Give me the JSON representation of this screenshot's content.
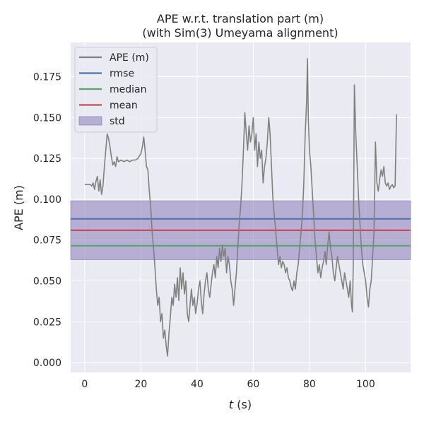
{
  "chart_data": {
    "type": "line",
    "title": "APE w.r.t. translation part (m)",
    "subtitle": "(with Sim(3) Umeyama alignment)",
    "xlabel_italic": "t",
    "xlabel_rest": " (s)",
    "ylabel": "APE (m)",
    "xlim": [
      -5,
      116
    ],
    "ylim": [
      -0.006,
      0.196
    ],
    "x_ticks": [
      0,
      20,
      40,
      60,
      80,
      100
    ],
    "x_tick_labels": [
      "0",
      "20",
      "40",
      "60",
      "80",
      "100"
    ],
    "y_ticks": [
      0.0,
      0.025,
      0.05,
      0.075,
      0.1,
      0.125,
      0.15,
      0.175
    ],
    "y_tick_labels": [
      "0.000",
      "0.025",
      "0.050",
      "0.075",
      "0.100",
      "0.125",
      "0.150",
      "0.175"
    ],
    "grid": true,
    "legend_position": "top-left",
    "legend": [
      {
        "label": "APE (m)",
        "kind": "line",
        "color": "#808080"
      },
      {
        "label": "rmse",
        "kind": "line",
        "color": "#4c72b0"
      },
      {
        "label": "median",
        "kind": "line",
        "color": "#55a868"
      },
      {
        "label": "mean",
        "kind": "line",
        "color": "#c44e52"
      },
      {
        "label": "std",
        "kind": "patch",
        "color": "#8172b3"
      }
    ],
    "stats": {
      "rmse": 0.088,
      "median": 0.0715,
      "mean": 0.081,
      "std_low": 0.063,
      "std_high": 0.099
    },
    "colors": {
      "ape": "#808080",
      "rmse": "#4c72b0",
      "median": "#55a868",
      "mean": "#c44e52",
      "std": "#8172b3",
      "plot_bg": "#eaeaf2",
      "grid": "#ffffff"
    },
    "series": [
      {
        "name": "APE (m)",
        "points": [
          [
            0,
            0.109
          ],
          [
            1,
            0.109
          ],
          [
            2,
            0.109
          ],
          [
            2.5,
            0.108
          ],
          [
            3,
            0.11
          ],
          [
            3.5,
            0.106
          ],
          [
            4,
            0.111
          ],
          [
            4.5,
            0.114
          ],
          [
            5,
            0.105
          ],
          [
            5.5,
            0.112
          ],
          [
            6,
            0.103
          ],
          [
            6.5,
            0.108
          ],
          [
            7,
            0.12
          ],
          [
            7.5,
            0.13
          ],
          [
            8,
            0.14
          ],
          [
            8.5,
            0.137
          ],
          [
            9,
            0.132
          ],
          [
            9.5,
            0.126
          ],
          [
            10,
            0.121
          ],
          [
            10.5,
            0.123
          ],
          [
            11,
            0.12
          ],
          [
            11.5,
            0.126
          ],
          [
            12,
            0.123
          ],
          [
            13,
            0.124
          ],
          [
            14,
            0.123
          ],
          [
            15,
            0.124
          ],
          [
            16,
            0.123
          ],
          [
            17,
            0.124
          ],
          [
            18,
            0.124
          ],
          [
            19,
            0.125
          ],
          [
            20,
            0.128
          ],
          [
            20.5,
            0.132
          ],
          [
            21,
            0.138
          ],
          [
            21.5,
            0.13
          ],
          [
            22,
            0.12
          ],
          [
            22.5,
            0.118
          ],
          [
            23,
            0.105
          ],
          [
            23.5,
            0.095
          ],
          [
            24,
            0.08
          ],
          [
            24.5,
            0.07
          ],
          [
            25,
            0.058
          ],
          [
            25.5,
            0.045
          ],
          [
            26,
            0.035
          ],
          [
            26.5,
            0.04
          ],
          [
            27,
            0.025
          ],
          [
            27.5,
            0.03
          ],
          [
            28,
            0.015
          ],
          [
            28.5,
            0.02
          ],
          [
            29,
            0.01
          ],
          [
            29.5,
            0.004
          ],
          [
            30,
            0.018
          ],
          [
            30.5,
            0.028
          ],
          [
            31,
            0.04
          ],
          [
            31.5,
            0.035
          ],
          [
            32,
            0.048
          ],
          [
            32.5,
            0.04
          ],
          [
            33,
            0.052
          ],
          [
            33.5,
            0.038
          ],
          [
            34,
            0.058
          ],
          [
            34.5,
            0.045
          ],
          [
            35,
            0.055
          ],
          [
            35.5,
            0.042
          ],
          [
            36,
            0.05
          ],
          [
            36.5,
            0.03
          ],
          [
            37,
            0.025
          ],
          [
            37.5,
            0.035
          ],
          [
            38,
            0.045
          ],
          [
            38.5,
            0.035
          ],
          [
            39,
            0.04
          ],
          [
            39.5,
            0.03
          ],
          [
            40,
            0.036
          ],
          [
            40.5,
            0.045
          ],
          [
            41,
            0.05
          ],
          [
            41.5,
            0.038
          ],
          [
            42,
            0.03
          ],
          [
            42.5,
            0.042
          ],
          [
            43,
            0.05
          ],
          [
            43.5,
            0.055
          ],
          [
            44,
            0.045
          ],
          [
            44.5,
            0.04
          ],
          [
            45,
            0.048
          ],
          [
            45.5,
            0.055
          ],
          [
            46,
            0.06
          ],
          [
            46.5,
            0.052
          ],
          [
            47,
            0.065
          ],
          [
            47.5,
            0.058
          ],
          [
            48,
            0.07
          ],
          [
            48.5,
            0.062
          ],
          [
            49,
            0.072
          ],
          [
            49.5,
            0.065
          ],
          [
            50,
            0.07
          ],
          [
            50.5,
            0.055
          ],
          [
            51,
            0.065
          ],
          [
            51.5,
            0.06
          ],
          [
            52,
            0.05
          ],
          [
            52.5,
            0.045
          ],
          [
            53,
            0.035
          ],
          [
            53.5,
            0.045
          ],
          [
            54,
            0.055
          ],
          [
            54.5,
            0.07
          ],
          [
            55,
            0.085
          ],
          [
            55.5,
            0.095
          ],
          [
            56,
            0.11
          ],
          [
            56.5,
            0.13
          ],
          [
            57,
            0.153
          ],
          [
            57.5,
            0.14
          ],
          [
            58,
            0.13
          ],
          [
            58.5,
            0.145
          ],
          [
            59,
            0.135
          ],
          [
            59.5,
            0.14
          ],
          [
            60,
            0.15
          ],
          [
            60.5,
            0.13
          ],
          [
            61,
            0.14
          ],
          [
            61.5,
            0.12
          ],
          [
            62,
            0.135
          ],
          [
            62.5,
            0.125
          ],
          [
            63,
            0.13
          ],
          [
            63.5,
            0.11
          ],
          [
            64,
            0.12
          ],
          [
            64.5,
            0.125
          ],
          [
            65,
            0.135
          ],
          [
            65.5,
            0.15
          ],
          [
            66,
            0.14
          ],
          [
            66.5,
            0.12
          ],
          [
            67,
            0.1
          ],
          [
            67.5,
            0.09
          ],
          [
            68,
            0.08
          ],
          [
            68.5,
            0.07
          ],
          [
            69,
            0.06
          ],
          [
            69.5,
            0.065
          ],
          [
            70,
            0.058
          ],
          [
            70.5,
            0.062
          ],
          [
            71,
            0.06
          ],
          [
            71.5,
            0.055
          ],
          [
            72,
            0.058
          ],
          [
            72.5,
            0.052
          ],
          [
            73,
            0.05
          ],
          [
            73.5,
            0.046
          ],
          [
            74,
            0.044
          ],
          [
            74.5,
            0.05
          ],
          [
            75,
            0.045
          ],
          [
            75.5,
            0.055
          ],
          [
            76,
            0.06
          ],
          [
            76.5,
            0.07
          ],
          [
            77,
            0.08
          ],
          [
            77.5,
            0.09
          ],
          [
            78,
            0.11
          ],
          [
            78.5,
            0.14
          ],
          [
            79,
            0.16
          ],
          [
            79.3,
            0.186
          ],
          [
            79.6,
            0.15
          ],
          [
            80,
            0.13
          ],
          [
            80.5,
            0.12
          ],
          [
            81,
            0.105
          ],
          [
            81.5,
            0.09
          ],
          [
            82,
            0.075
          ],
          [
            82.5,
            0.065
          ],
          [
            83,
            0.055
          ],
          [
            83.5,
            0.06
          ],
          [
            84,
            0.052
          ],
          [
            84.5,
            0.058
          ],
          [
            85,
            0.062
          ],
          [
            85.5,
            0.068
          ],
          [
            86,
            0.06
          ],
          [
            86.5,
            0.072
          ],
          [
            87,
            0.08
          ],
          [
            87.5,
            0.07
          ],
          [
            88,
            0.065
          ],
          [
            88.5,
            0.055
          ],
          [
            89,
            0.05
          ],
          [
            89.5,
            0.058
          ],
          [
            90,
            0.065
          ],
          [
            90.5,
            0.06
          ],
          [
            91,
            0.055
          ],
          [
            91.5,
            0.05
          ],
          [
            92,
            0.045
          ],
          [
            92.5,
            0.055
          ],
          [
            93,
            0.05
          ],
          [
            93.5,
            0.045
          ],
          [
            94,
            0.04
          ],
          [
            94.5,
            0.05
          ],
          [
            95,
            0.035
          ],
          [
            95.3,
            0.031
          ],
          [
            95.6,
            0.06
          ],
          [
            96,
            0.17
          ],
          [
            96.5,
            0.14
          ],
          [
            97,
            0.12
          ],
          [
            97.5,
            0.1
          ],
          [
            98,
            0.085
          ],
          [
            98.5,
            0.07
          ],
          [
            99,
            0.06
          ],
          [
            99.5,
            0.055
          ],
          [
            100,
            0.05
          ],
          [
            100.5,
            0.04
          ],
          [
            101,
            0.034
          ],
          [
            101.5,
            0.045
          ],
          [
            102,
            0.05
          ],
          [
            102.5,
            0.065
          ],
          [
            103,
            0.08
          ],
          [
            103.5,
            0.135
          ],
          [
            104,
            0.11
          ],
          [
            104.5,
            0.105
          ],
          [
            105,
            0.112
          ],
          [
            105.5,
            0.118
          ],
          [
            106,
            0.114
          ],
          [
            106.5,
            0.12
          ],
          [
            107,
            0.11
          ],
          [
            107.5,
            0.108
          ],
          [
            108,
            0.11
          ],
          [
            108.5,
            0.106
          ],
          [
            109,
            0.108
          ],
          [
            109.5,
            0.109
          ],
          [
            110,
            0.107
          ],
          [
            110.5,
            0.108
          ],
          [
            111,
            0.152
          ]
        ]
      }
    ]
  }
}
